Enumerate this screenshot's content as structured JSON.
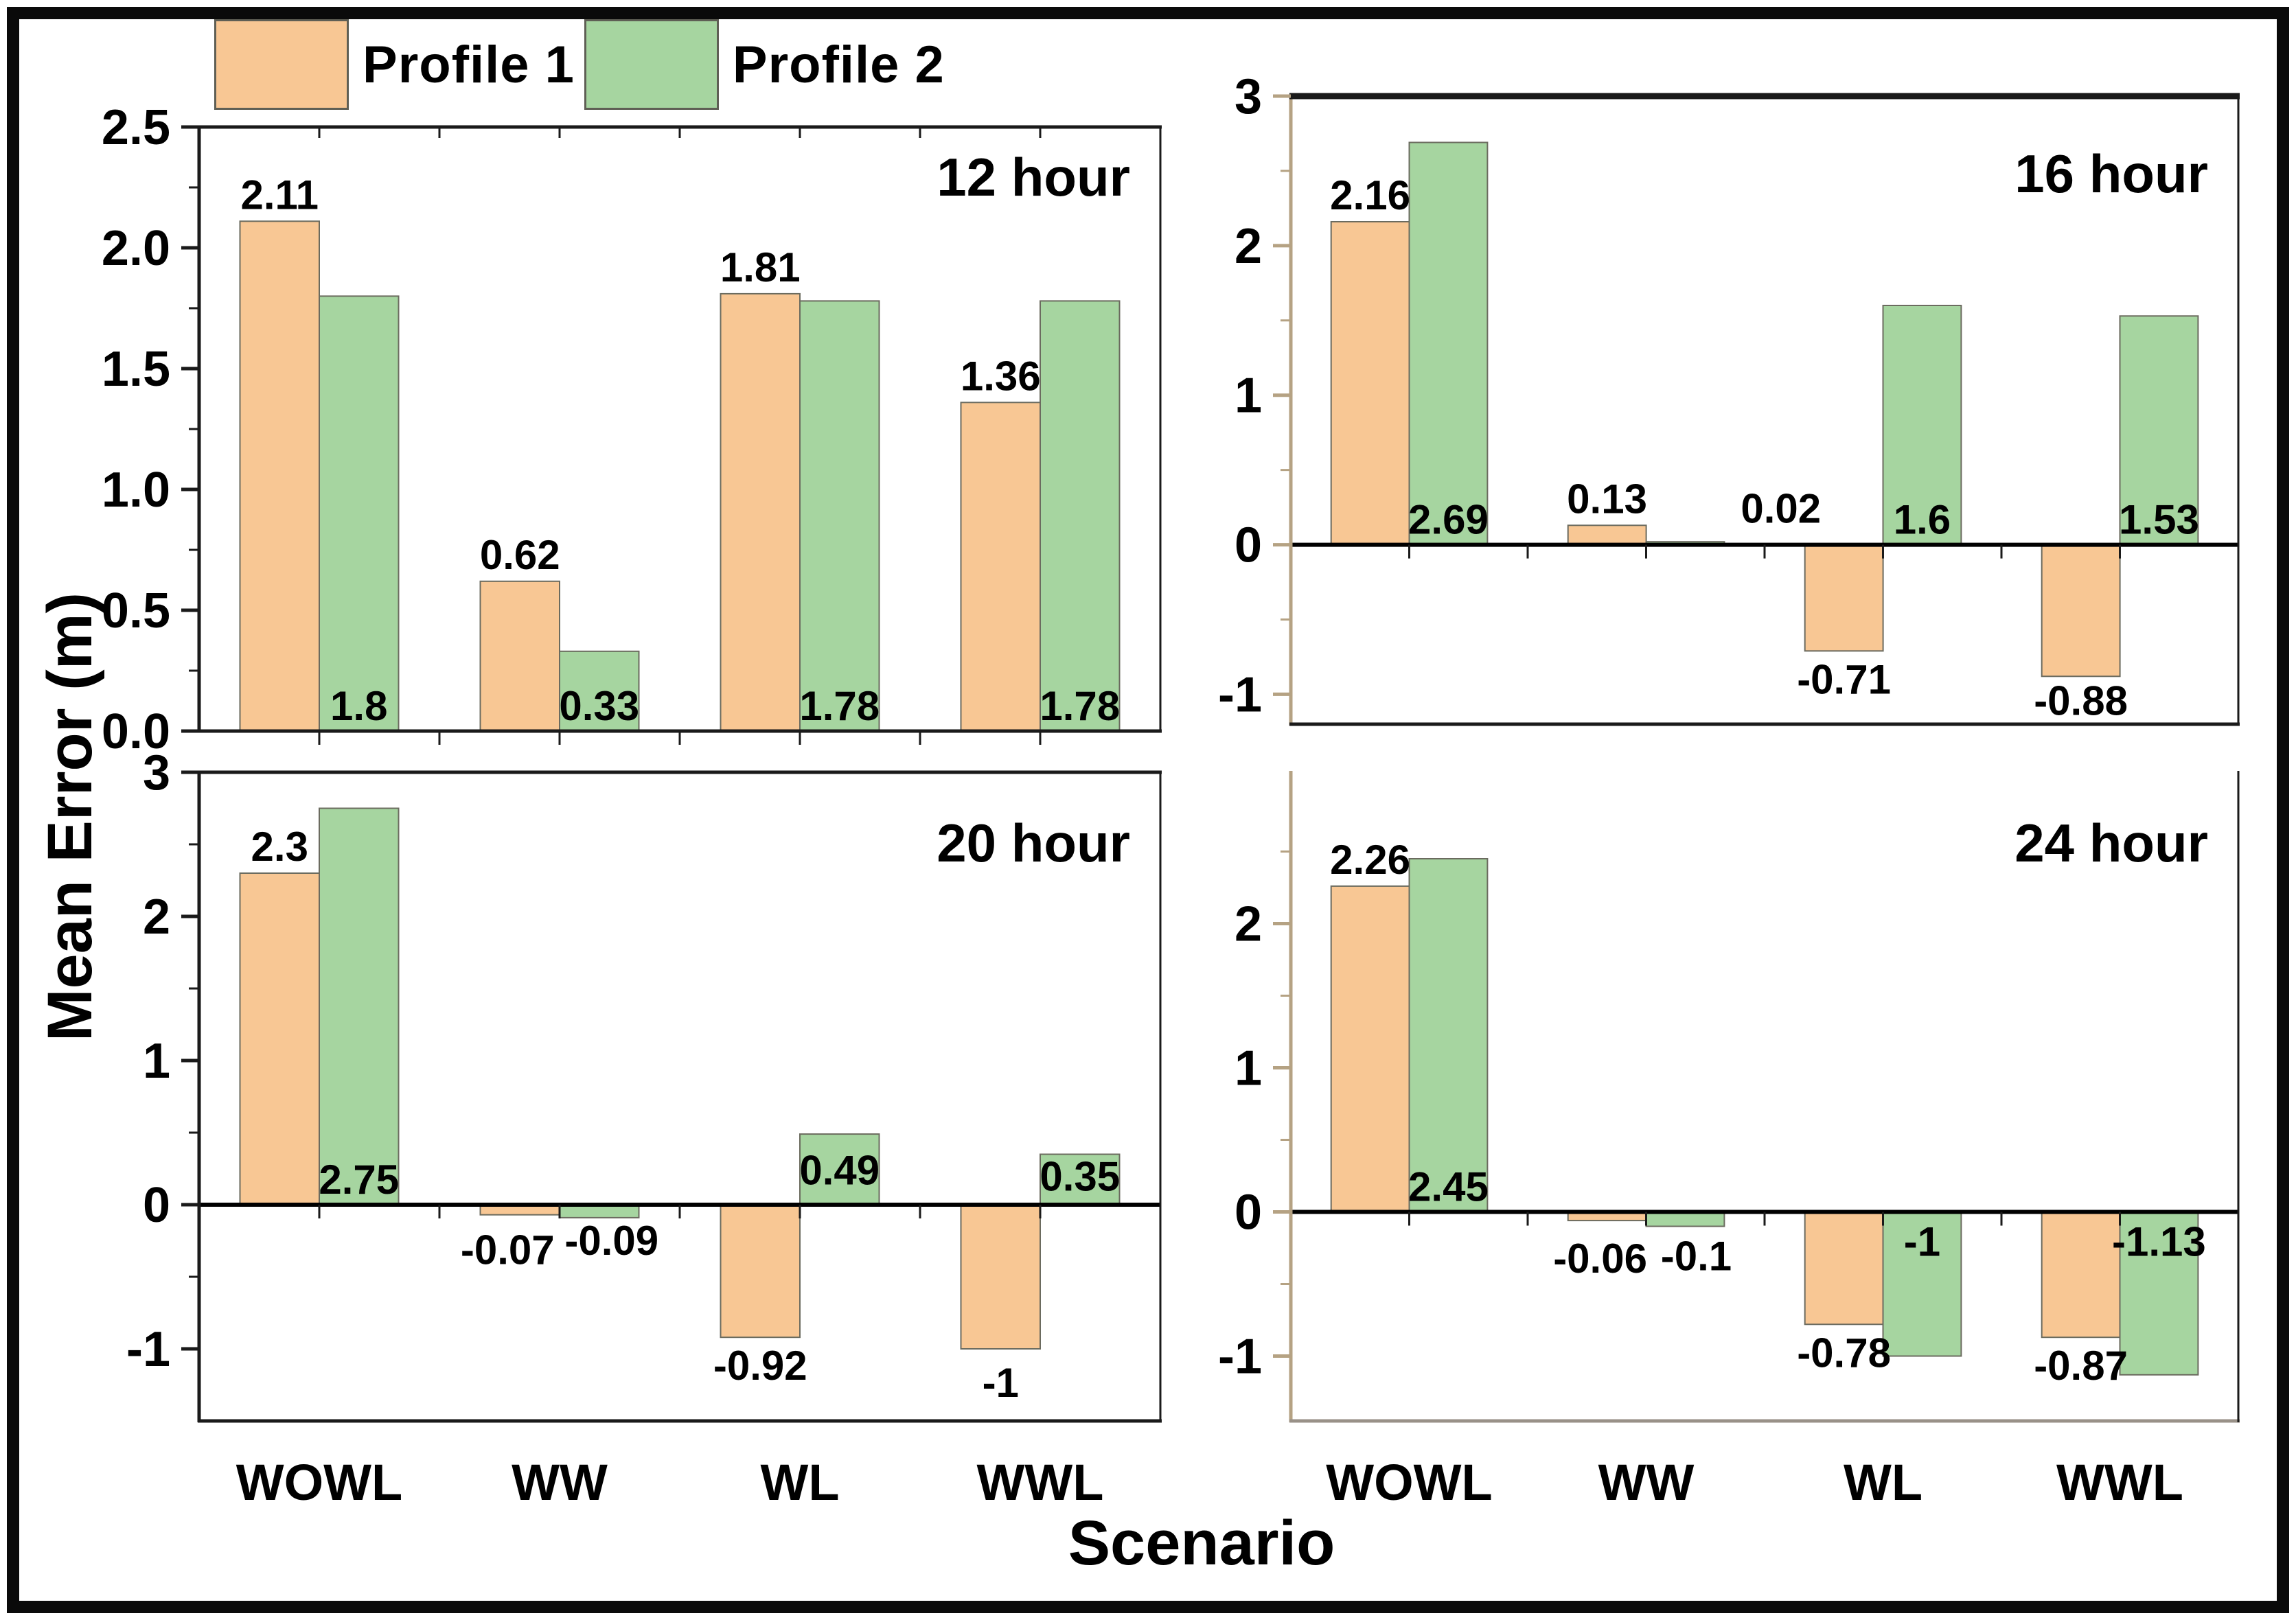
{
  "figure": {
    "ylabel": "Mean Error (m)",
    "xlabel": "Scenario",
    "legend_position": "top-left",
    "legend": [
      {
        "label": "Profile 1",
        "color": "#f8c794"
      },
      {
        "label": "Profile 2",
        "color": "#a6d5a0"
      }
    ],
    "colors": {
      "profile1": "#f8c794",
      "profile2": "#a6d5a0",
      "bar_outline": "#6b6b5f",
      "axis_black": "#1a1a1a",
      "axis_tan": "#b5a283",
      "grey_spine": "#999188",
      "zero_line": "#000000"
    }
  },
  "chart_data": [
    {
      "type": "bar",
      "title": "12 hour",
      "categories": [
        "WOWL",
        "WW",
        "WL",
        "WWL"
      ],
      "xlabel": "",
      "ylabel": "",
      "ylim": [
        0,
        2.5
      ],
      "yticks": [
        [
          "2.5",
          2.5
        ],
        [
          "2.0",
          2.0
        ],
        [
          "1.5",
          1.5
        ],
        [
          "1.0",
          1.0
        ],
        [
          "0.5",
          0.5
        ],
        [
          "0.0",
          0.0
        ]
      ],
      "minor_ticks": [
        2.25,
        1.75,
        1.25,
        0.75,
        0.25
      ],
      "grid": false,
      "series": [
        {
          "name": "Profile 1",
          "values": [
            2.11,
            0.62,
            1.81,
            1.36
          ],
          "labels": [
            "2.11",
            "0.62",
            "1.81",
            "1.36"
          ],
          "label_pos": [
            "above",
            "above",
            "above",
            "above"
          ],
          "label_offsets": [
            [
              0,
              0
            ],
            [
              0,
              0
            ],
            [
              0,
              0
            ],
            [
              0,
              0
            ]
          ]
        },
        {
          "name": "Profile 2",
          "values": [
            1.8,
            0.33,
            1.78,
            1.78
          ],
          "labels": [
            "1.8",
            "0.33",
            "1.78",
            "1.78"
          ],
          "label_pos": [
            "inside-bottom",
            "inside-bottom",
            "inside-bottom",
            "inside-bottom"
          ],
          "label_offsets": [
            [
              0,
              0
            ],
            [
              0,
              0
            ],
            [
              0,
              0
            ],
            [
              0,
              0
            ]
          ]
        }
      ],
      "axis_style": {
        "left": "black",
        "top": "normal",
        "bottom": "black",
        "right": true,
        "xticklabels": false,
        "top_ticks": true
      }
    },
    {
      "type": "bar",
      "title": "16 hour",
      "categories": [
        "WOWL",
        "WW",
        "WL",
        "WWL"
      ],
      "xlabel": "",
      "ylabel": "",
      "ylim": [
        -1.2,
        3
      ],
      "yticks": [
        [
          "3",
          3
        ],
        [
          "2",
          2
        ],
        [
          "1",
          1
        ],
        [
          "0",
          0
        ],
        [
          "-1",
          -1
        ]
      ],
      "minor_ticks": [
        2.5,
        1.5,
        0.5,
        -0.5
      ],
      "grid": false,
      "series": [
        {
          "name": "Profile 1",
          "values": [
            2.16,
            0.13,
            -0.71,
            -0.88
          ],
          "labels": [
            "2.16",
            "0.13",
            "-0.71",
            "-0.88"
          ],
          "label_pos": [
            "above",
            "above",
            "below",
            "below"
          ],
          "label_offsets": [
            [
              0,
              0
            ],
            [
              0,
              0
            ],
            [
              0,
              0
            ],
            [
              0,
              -6
            ]
          ]
        },
        {
          "name": "Profile 2",
          "values": [
            2.69,
            0.02,
            1.6,
            1.53
          ],
          "labels": [
            "2.69",
            "0.02",
            "1.6",
            "1.53"
          ],
          "label_pos": [
            "inside-bottom",
            "right",
            "inside-bottom",
            "inside-bottom"
          ],
          "label_offsets": [
            [
              0,
              0
            ],
            [
              10,
              -8
            ],
            [
              0,
              0
            ],
            [
              0,
              0
            ]
          ]
        }
      ],
      "axis_style": {
        "left": "tan",
        "top": "thick",
        "bottom": "black",
        "right": true,
        "xticklabels": false,
        "top_ticks": false
      }
    },
    {
      "type": "bar",
      "title": "20 hour",
      "categories": [
        "WOWL",
        "WW",
        "WL",
        "WWL"
      ],
      "xlabel": "",
      "ylabel": "",
      "ylim": [
        -1.5,
        3
      ],
      "yticks": [
        [
          "3",
          3
        ],
        [
          "2",
          2
        ],
        [
          "1",
          1
        ],
        [
          "0",
          0
        ],
        [
          "-1",
          -1
        ]
      ],
      "minor_ticks": [
        2.5,
        1.5,
        0.5,
        -0.5
      ],
      "grid": false,
      "series": [
        {
          "name": "Profile 1",
          "values": [
            2.3,
            -0.07,
            -0.92,
            -1
          ],
          "labels": [
            "2.3",
            "-0.07",
            "-0.92",
            "-1"
          ],
          "label_pos": [
            "above",
            "below",
            "below",
            "below"
          ],
          "label_offsets": [
            [
              0,
              0
            ],
            [
              -18,
              10
            ],
            [
              0,
              0
            ],
            [
              0,
              8
            ]
          ]
        },
        {
          "name": "Profile 2",
          "values": [
            2.75,
            -0.09,
            0.49,
            0.35
          ],
          "labels": [
            "2.75",
            "-0.09",
            "0.49",
            "0.35"
          ],
          "label_pos": [
            "inside-bottom",
            "below",
            "inside-middle",
            "inside-middle"
          ],
          "label_offsets": [
            [
              0,
              0
            ],
            [
              18,
              -8
            ],
            [
              0,
              0
            ],
            [
              0,
              -6
            ]
          ]
        }
      ],
      "axis_style": {
        "left": "black",
        "top": "normal",
        "bottom": "black",
        "right": true,
        "xticklabels": true,
        "top_ticks": false
      }
    },
    {
      "type": "bar",
      "title": "24 hour",
      "categories": [
        "WOWL",
        "WW",
        "WL",
        "WWL"
      ],
      "xlabel": "",
      "ylabel": "",
      "ylim": [
        -1.45,
        3.05
      ],
      "yticks": [
        [
          "2",
          2
        ],
        [
          "1",
          1
        ],
        [
          "0",
          0
        ],
        [
          "-1",
          -1
        ]
      ],
      "minor_ticks": [
        2.5,
        1.5,
        0.5,
        -0.5
      ],
      "grid": false,
      "series": [
        {
          "name": "Profile 1",
          "values": [
            2.26,
            -0.06,
            -0.78,
            -0.87
          ],
          "labels": [
            "2.26",
            "-0.06",
            "-0.78",
            "-0.87"
          ],
          "label_pos": [
            "above",
            "below",
            "below",
            "below"
          ],
          "label_offsets": [
            [
              0,
              0
            ],
            [
              -10,
              14
            ],
            [
              0,
              0
            ],
            [
              0,
              0
            ]
          ]
        },
        {
          "name": "Profile 2",
          "values": [
            2.45,
            -0.1,
            -1,
            -1.13
          ],
          "labels": [
            "2.45",
            "-0.1",
            "-1",
            "-1.13"
          ],
          "label_pos": [
            "inside-bottom",
            "below",
            "inside-top",
            "inside-top"
          ],
          "label_offsets": [
            [
              0,
              0
            ],
            [
              16,
              2
            ],
            [
              0,
              0
            ],
            [
              0,
              0
            ]
          ]
        }
      ],
      "axis_style": {
        "left": "tan",
        "top": "none",
        "bottom": "grey",
        "right": true,
        "xticklabels": true,
        "top_ticks": false
      }
    }
  ]
}
